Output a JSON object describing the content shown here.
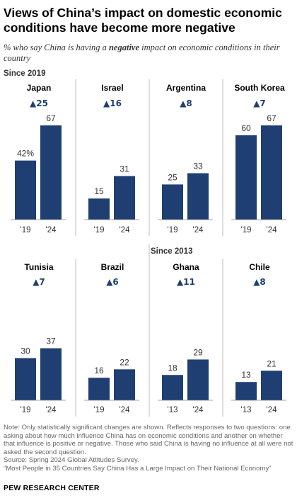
{
  "title": "Views of China’s impact on domestic economic conditions have become more negative",
  "subtitle": {
    "before": "% who say China is having a ",
    "emphasis": "negative",
    "after": " impact on economic conditions in their country"
  },
  "group_labels": {
    "since_2019": "Since 2019",
    "since_2013": "Since 2013"
  },
  "chart_data": {
    "type": "bar",
    "bar_color": "#1f3f73",
    "change_color": "#1f3f73",
    "change_symbol": "▲",
    "ylim": [
      0,
      72
    ],
    "panels": [
      {
        "country": "Japan",
        "change": "25",
        "categories": [
          "'19",
          "'24"
        ],
        "values": [
          42,
          67
        ],
        "labels": [
          "42%",
          "67"
        ]
      },
      {
        "country": "Israel",
        "change": "16",
        "categories": [
          "'19",
          "'24"
        ],
        "values": [
          15,
          31
        ],
        "labels": [
          "15",
          "31"
        ]
      },
      {
        "country": "Argentina",
        "change": "8",
        "categories": [
          "'19",
          "'24"
        ],
        "values": [
          25,
          33
        ],
        "labels": [
          "25",
          "33"
        ]
      },
      {
        "country": "South Korea",
        "change": "7",
        "categories": [
          "'19",
          "'24"
        ],
        "values": [
          60,
          67
        ],
        "labels": [
          "60",
          "67"
        ]
      },
      {
        "country": "Tunisia",
        "change": "7",
        "categories": [
          "'19",
          "'24"
        ],
        "values": [
          30,
          37
        ],
        "labels": [
          "30",
          "37"
        ]
      },
      {
        "country": "Brazil",
        "change": "6",
        "categories": [
          "'19",
          "'24"
        ],
        "values": [
          16,
          22
        ],
        "labels": [
          "16",
          "22"
        ]
      },
      {
        "country": "Ghana",
        "change": "11",
        "categories": [
          "'13",
          "'24"
        ],
        "values": [
          18,
          29
        ],
        "labels": [
          "18",
          "29"
        ]
      },
      {
        "country": "Chile",
        "change": "8",
        "categories": [
          "'13",
          "'24"
        ],
        "values": [
          13,
          21
        ],
        "labels": [
          "13",
          "21"
        ]
      }
    ]
  },
  "notes": {
    "note": "Note: Only statistically significant changes are shown. Reflects responses to two questions: one asking about how much influence China has on economic conditions and another on whether that influence is positive or negative. Those who said China is having no influence at all were not asked the second question.",
    "source": "Source: Spring 2024 Global Attitudes Survey.",
    "report": "“Most People in 35 Countries Say China Has a Large Impact on Their National Economy”"
  },
  "footer": "PEW RESEARCH CENTER"
}
